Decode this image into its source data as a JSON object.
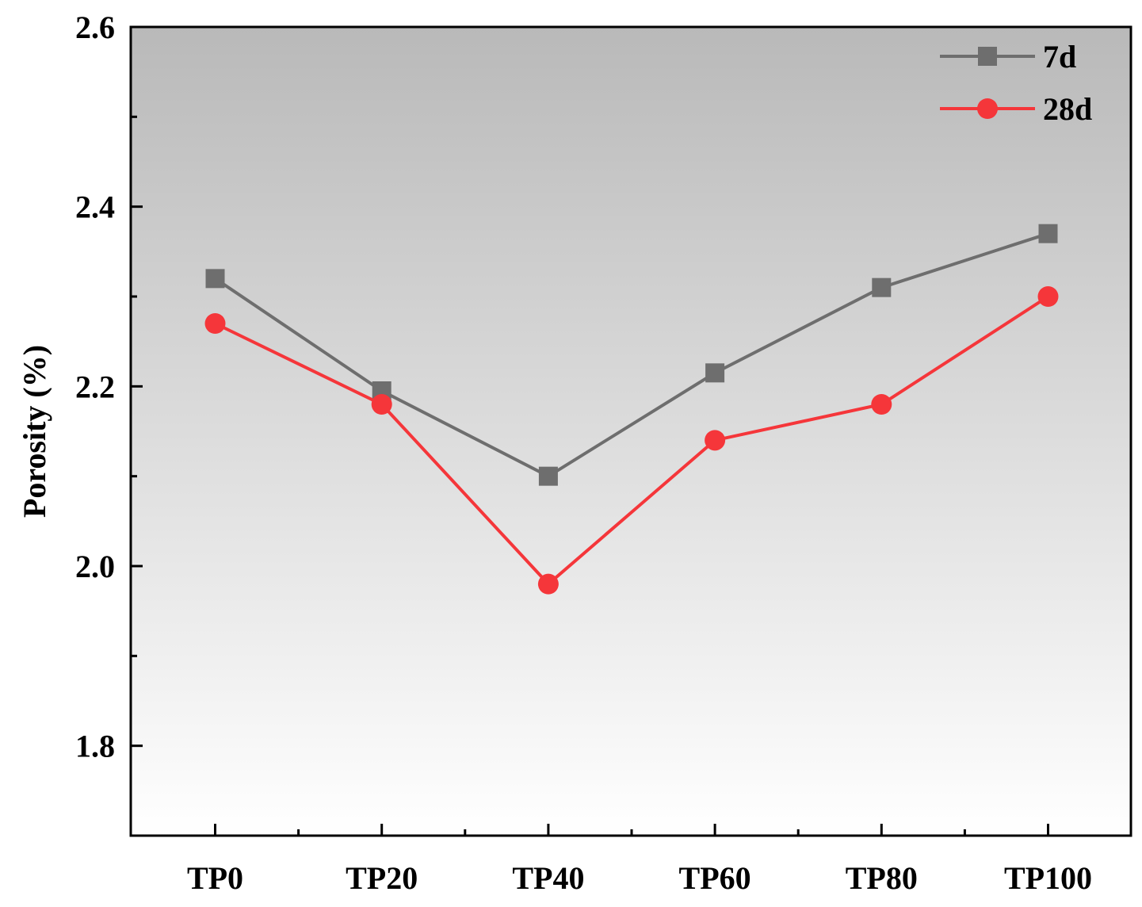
{
  "chart_data": {
    "type": "line",
    "title": "",
    "xlabel": "",
    "ylabel": "Porosity (%)",
    "categories": [
      "TP0",
      "TP20",
      "TP40",
      "TP60",
      "TP80",
      "TP100"
    ],
    "ylim": [
      1.7,
      2.6
    ],
    "yticks": [
      "1.8",
      "2.0",
      "2.2",
      "2.4",
      "2.6"
    ],
    "grid": false,
    "legend": "top-right",
    "background": "gradient gray-to-white",
    "series": [
      {
        "name": "7d",
        "marker": "square",
        "color": "#6e6e6e",
        "values": [
          2.32,
          2.195,
          2.1,
          2.215,
          2.31,
          2.37
        ]
      },
      {
        "name": "28d",
        "marker": "circle",
        "color": "#f5363a",
        "values": [
          2.27,
          2.18,
          1.98,
          2.14,
          2.18,
          2.3
        ]
      }
    ]
  }
}
